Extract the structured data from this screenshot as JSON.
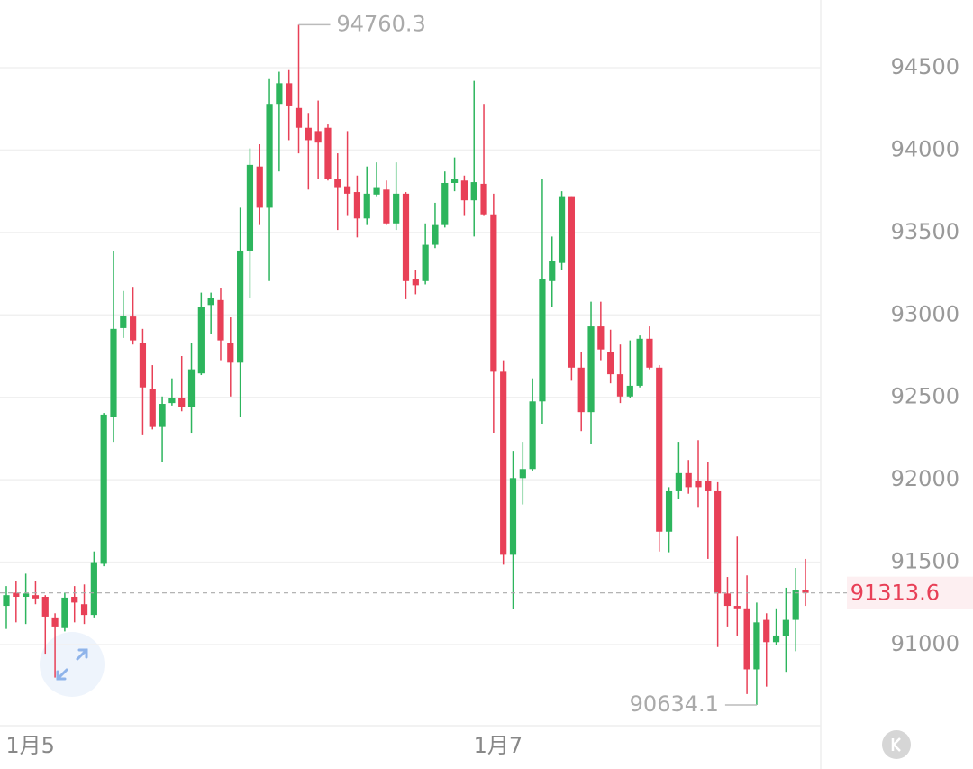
{
  "chart_data": {
    "type": "candlestick",
    "categories": [
      null,
      null,
      "1月5",
      null,
      null,
      null,
      null,
      null,
      null,
      null,
      null,
      null,
      null,
      null,
      null,
      null,
      null,
      null,
      null,
      null,
      null,
      null,
      null,
      null,
      null,
      null,
      null,
      null,
      null,
      null,
      null,
      null,
      null,
      null,
      null,
      null,
      null,
      null,
      null,
      null,
      null,
      null,
      null,
      null,
      null,
      null,
      null,
      null,
      null,
      null,
      "1月7",
      null,
      null,
      null,
      null,
      null,
      null,
      null,
      null,
      null,
      null,
      null,
      null,
      null,
      null,
      null,
      null,
      null,
      null,
      null,
      null,
      null,
      null,
      null,
      null,
      null,
      null,
      null,
      null,
      null,
      null,
      null,
      null
    ],
    "ohlc": [
      [
        91235,
        91355,
        91095,
        91300
      ],
      [
        91315,
        91385,
        91135,
        91290
      ],
      [
        91290,
        91430,
        91125,
        91310
      ],
      [
        91300,
        91385,
        91245,
        91280
      ],
      [
        91290,
        91300,
        90945,
        91170
      ],
      [
        91165,
        91190,
        90800,
        91110
      ],
      [
        91100,
        91315,
        91080,
        91285
      ],
      [
        91290,
        91355,
        91135,
        91255
      ],
      [
        91245,
        91365,
        91125,
        91180
      ],
      [
        91180,
        91565,
        91165,
        91500
      ],
      [
        91490,
        92405,
        91475,
        92395
      ],
      [
        92380,
        93390,
        92230,
        92915
      ],
      [
        92920,
        93145,
        92860,
        92995
      ],
      [
        92990,
        93170,
        92820,
        92845
      ],
      [
        92830,
        92915,
        92275,
        92560
      ],
      [
        92550,
        92695,
        92305,
        92320
      ],
      [
        92320,
        92505,
        92110,
        92460
      ],
      [
        92465,
        92615,
        92450,
        92495
      ],
      [
        92495,
        92750,
        92415,
        92440
      ],
      [
        92440,
        92830,
        92285,
        92670
      ],
      [
        92645,
        93135,
        92635,
        93050
      ],
      [
        93060,
        93135,
        92885,
        93105
      ],
      [
        93090,
        93160,
        92725,
        92845
      ],
      [
        92830,
        92985,
        92505,
        92710
      ],
      [
        92710,
        93650,
        92380,
        93390
      ],
      [
        93390,
        94010,
        93105,
        93910
      ],
      [
        93900,
        94035,
        93545,
        93650
      ],
      [
        93650,
        94430,
        93205,
        94280
      ],
      [
        94280,
        94475,
        93870,
        94405
      ],
      [
        94405,
        94485,
        94060,
        94265
      ],
      [
        94255,
        94760.3,
        93980,
        94135
      ],
      [
        94135,
        94225,
        93760,
        94060
      ],
      [
        94115,
        94300,
        93825,
        94045
      ],
      [
        94135,
        94155,
        93815,
        93825
      ],
      [
        93825,
        93980,
        93515,
        93775
      ],
      [
        93780,
        94115,
        93600,
        93735
      ],
      [
        93745,
        93845,
        93470,
        93585
      ],
      [
        93585,
        93900,
        93545,
        93735
      ],
      [
        93730,
        93925,
        93720,
        93775
      ],
      [
        93760,
        93815,
        93545,
        93555
      ],
      [
        93555,
        93925,
        93515,
        93735
      ],
      [
        93735,
        93745,
        93095,
        93205
      ],
      [
        93215,
        93270,
        93125,
        93180
      ],
      [
        93205,
        93555,
        93185,
        93425
      ],
      [
        93425,
        93680,
        93405,
        93545
      ],
      [
        93545,
        93870,
        93530,
        93800
      ],
      [
        93800,
        93955,
        93750,
        93825
      ],
      [
        93815,
        93845,
        93600,
        93695
      ],
      [
        93695,
        94420,
        93475,
        93805
      ],
      [
        93795,
        94280,
        93600,
        93610
      ],
      [
        93610,
        93735,
        92285,
        92655
      ],
      [
        92655,
        92725,
        91485,
        91545
      ],
      [
        91545,
        92175,
        91215,
        92010
      ],
      [
        92010,
        92230,
        91850,
        92065
      ],
      [
        92065,
        92615,
        92055,
        92475
      ],
      [
        92475,
        93825,
        92340,
        93215
      ],
      [
        93205,
        93475,
        93050,
        93325
      ],
      [
        93315,
        93750,
        93270,
        93720
      ],
      [
        93720,
        93720,
        92600,
        92680
      ],
      [
        92680,
        92775,
        92295,
        92410
      ],
      [
        92410,
        93080,
        92215,
        92930
      ],
      [
        92930,
        93080,
        92725,
        92790
      ],
      [
        92775,
        92910,
        92585,
        92640
      ],
      [
        92640,
        92820,
        92465,
        92505
      ],
      [
        92505,
        92845,
        92495,
        92570
      ],
      [
        92570,
        92875,
        92560,
        92855
      ],
      [
        92855,
        92930,
        92670,
        92680
      ],
      [
        92680,
        92695,
        91565,
        91685
      ],
      [
        91685,
        91955,
        91560,
        91930
      ],
      [
        91930,
        92230,
        91885,
        92040
      ],
      [
        92040,
        92120,
        91915,
        91955
      ],
      [
        91995,
        92240,
        91835,
        91955
      ],
      [
        91995,
        92110,
        91520,
        91930
      ],
      [
        91930,
        91985,
        90985,
        91310
      ],
      [
        91310,
        91410,
        91110,
        91235
      ],
      [
        91235,
        91655,
        91055,
        91220
      ],
      [
        91220,
        91420,
        90700,
        90850
      ],
      [
        90850,
        91255,
        90634.1,
        91135
      ],
      [
        91150,
        91190,
        90745,
        91015
      ],
      [
        91015,
        91220,
        91000,
        91055
      ],
      [
        91050,
        91345,
        90835,
        91150
      ],
      [
        91150,
        91465,
        90960,
        91330
      ],
      [
        91330,
        91520,
        91235,
        91313.6
      ]
    ],
    "up_color": "#2db55d",
    "down_color": "#e84057",
    "ylim": [
      90508,
      94910
    ],
    "yticks": [
      91000,
      91500,
      92000,
      92500,
      93000,
      93500,
      94000,
      94500
    ],
    "grid": true
  }
}
